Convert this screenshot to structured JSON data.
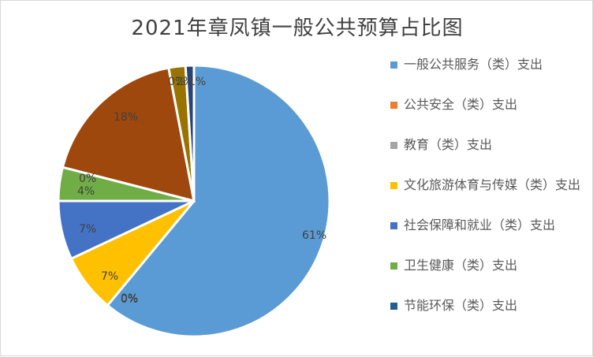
{
  "chart_data": {
    "type": "pie",
    "title": "2021年章凤镇一般公共预算占比图",
    "start_angle_deg": 0,
    "direction": "clockwise",
    "slices": [
      {
        "name": "一般公共服务（类）支出",
        "value": 61,
        "label": "61%",
        "color": "#5B9BD5",
        "label_pos": [
          382,
          302
        ]
      },
      {
        "name": "公共安全（类）支出",
        "value": 0,
        "label": "0%",
        "color": "#ED7D31",
        "label_pos": [
          152,
          382
        ]
      },
      {
        "name": "教育（类）支出",
        "value": 0,
        "label": "0%",
        "color": "#A5A5A5",
        "label_pos": [
          152,
          383
        ]
      },
      {
        "name": "文化旅游体育与传媒（类）支出",
        "value": 7,
        "label": "7%",
        "color": "#FFC000",
        "label_pos": [
          127,
          354
        ]
      },
      {
        "name": "社会保障和就业（类）支出",
        "value": 7,
        "label": "7%",
        "color": "#4472C4",
        "label_pos": [
          99,
          294
        ]
      },
      {
        "name": "卫生健康（类）支出",
        "value": 4,
        "label": "4%",
        "color": "#70AD47",
        "label_pos": [
          97,
          246
        ]
      },
      {
        "name": "节能环保（类）支出",
        "value": 0,
        "label": "0%",
        "color": "#264478",
        "label_pos": [
          99,
          230
        ]
      },
      {
        "name": "",
        "value": 18,
        "label": "18%",
        "color": "#9E480E",
        "label_pos": [
          143,
          152
        ]
      },
      {
        "name": "",
        "value": 0,
        "label": "0%",
        "color": "#636363",
        "label_pos": [
          212,
          107
        ]
      },
      {
        "name": "",
        "value": 2,
        "label": "2%",
        "color": "#997300",
        "label_pos": [
          222,
          107
        ]
      },
      {
        "name": "",
        "value": 1,
        "label": "1%",
        "color": "#264478",
        "label_pos": [
          238,
          107
        ]
      }
    ],
    "legend_position": "right"
  },
  "legend": {
    "items": [
      {
        "label": "一般公共服务（类）支出",
        "color": "#5B9BD5"
      },
      {
        "label": "公共安全（类）支出",
        "color": "#ED7D31"
      },
      {
        "label": "教育（类）支出",
        "color": "#A5A5A5"
      },
      {
        "label": "文化旅游体育与传媒（类）支出",
        "color": "#FFC000"
      },
      {
        "label": "社会保障和就业（类）支出",
        "color": "#4472C4"
      },
      {
        "label": "卫生健康（类）支出",
        "color": "#70AD47"
      },
      {
        "label": "节能环保（类）支出",
        "color": "#255E91"
      }
    ]
  }
}
